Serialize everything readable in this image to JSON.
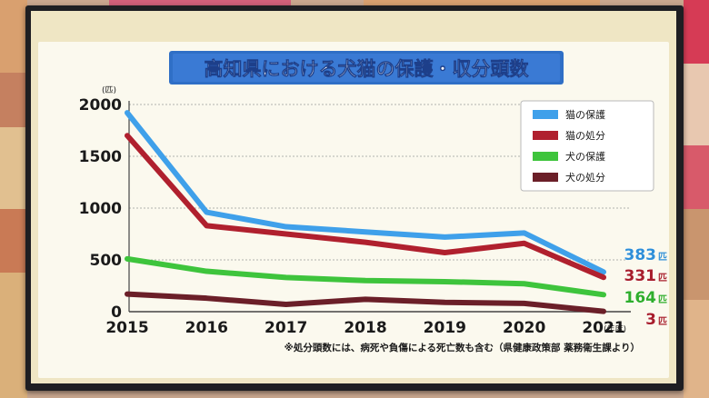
{
  "chart_data": {
    "type": "line",
    "title": "高知県における犬猫の保護・収分頭数",
    "y_unit": "(匹)",
    "x_unit": "(年度)",
    "categories": [
      "2015",
      "2016",
      "2017",
      "2018",
      "2019",
      "2020",
      "2021"
    ],
    "ylim": [
      0,
      2000
    ],
    "yticks": [
      0,
      500,
      1000,
      1500,
      2000
    ],
    "grid": true,
    "legend_position": "top-right",
    "series": [
      {
        "name": "猫の保護",
        "color": "#3fa0ea",
        "values": [
          1920,
          960,
          820,
          770,
          720,
          760,
          383
        ]
      },
      {
        "name": "猫の処分",
        "color": "#b0202e",
        "values": [
          1700,
          830,
          750,
          670,
          570,
          660,
          331
        ]
      },
      {
        "name": "犬の保護",
        "color": "#3ec43c",
        "values": [
          510,
          390,
          330,
          300,
          290,
          270,
          164
        ]
      },
      {
        "name": "犬の処分",
        "color": "#6b1f28",
        "values": [
          170,
          130,
          70,
          120,
          90,
          80,
          3
        ]
      }
    ],
    "end_labels": [
      {
        "value": "383",
        "unit": "匹",
        "color": "#2f8fd8"
      },
      {
        "value": "331",
        "unit": "匹",
        "color": "#a81e2c"
      },
      {
        "value": "164",
        "unit": "匹",
        "color": "#2fae2c"
      },
      {
        "value": "3",
        "unit": "匹",
        "color": "#a81e2c"
      }
    ],
    "footnote": "※処分頭数には、病死や負傷による死亡数も含む（県健康政策部 薬務衛生課より）"
  },
  "colors": {
    "chart_bg": "#fbf9ee",
    "frame_bg": "#efe6c4",
    "title_band": "#2f6fc6",
    "title_text": "#ffffff"
  }
}
